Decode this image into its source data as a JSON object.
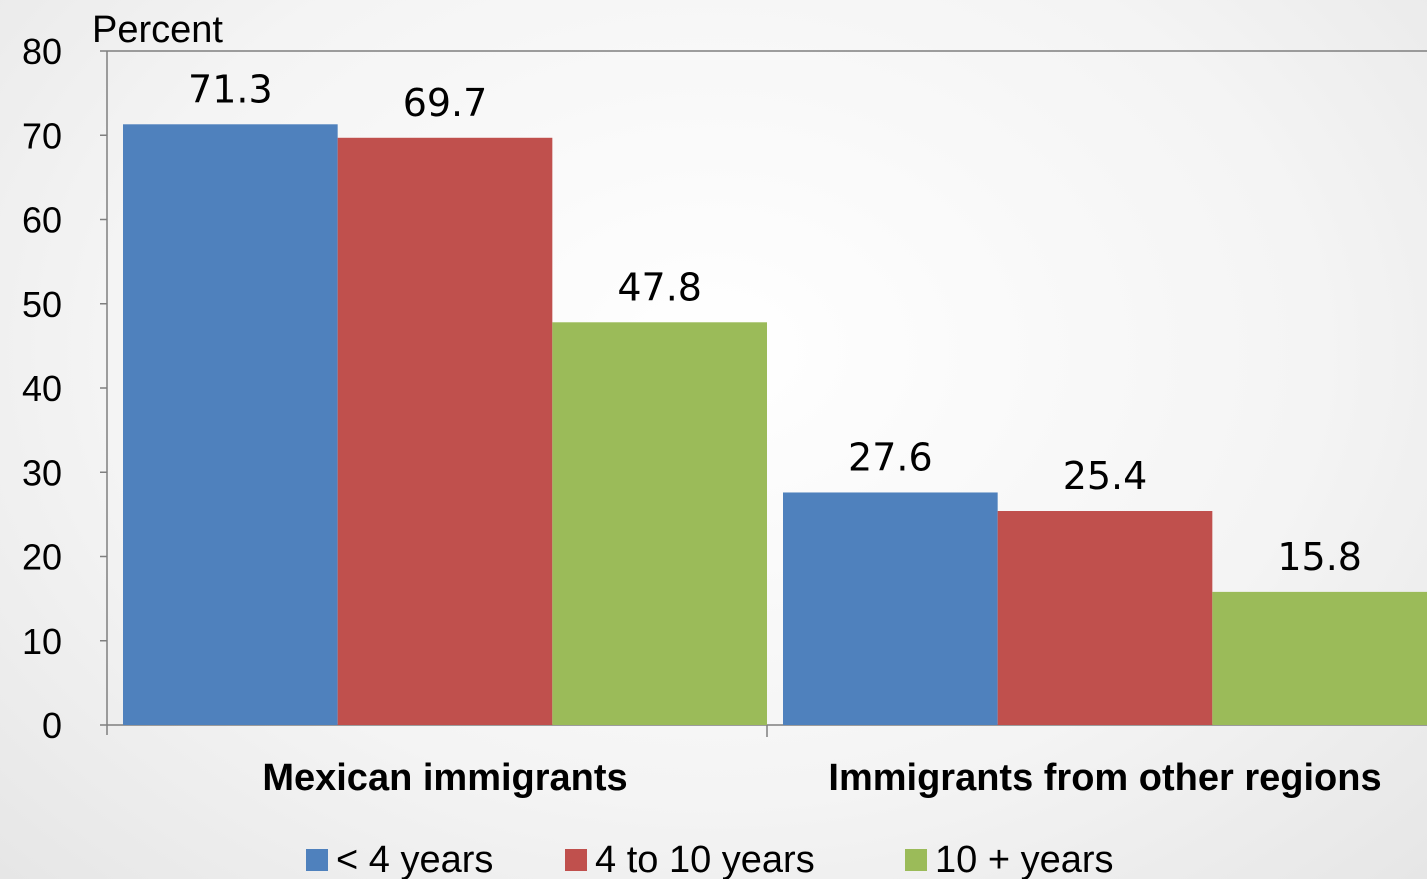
{
  "chart_data": {
    "type": "bar",
    "ylabel": "Percent",
    "ylim": [
      0,
      80
    ],
    "yticks": [
      0,
      10,
      20,
      30,
      40,
      50,
      60,
      70,
      80
    ],
    "categories": [
      "Mexican immigrants",
      "Immigrants from other regions"
    ],
    "series": [
      {
        "name": "< 4 years",
        "color": "#4f81bd",
        "values": [
          71.3,
          27.6
        ]
      },
      {
        "name": "4 to 10 years",
        "color": "#c0504d",
        "values": [
          69.7,
          25.4
        ]
      },
      {
        "name": "10 + years",
        "color": "#9bbb59",
        "values": [
          47.8,
          15.8
        ]
      }
    ],
    "grid": false,
    "legend_position": "bottom",
    "data_labels": true
  }
}
